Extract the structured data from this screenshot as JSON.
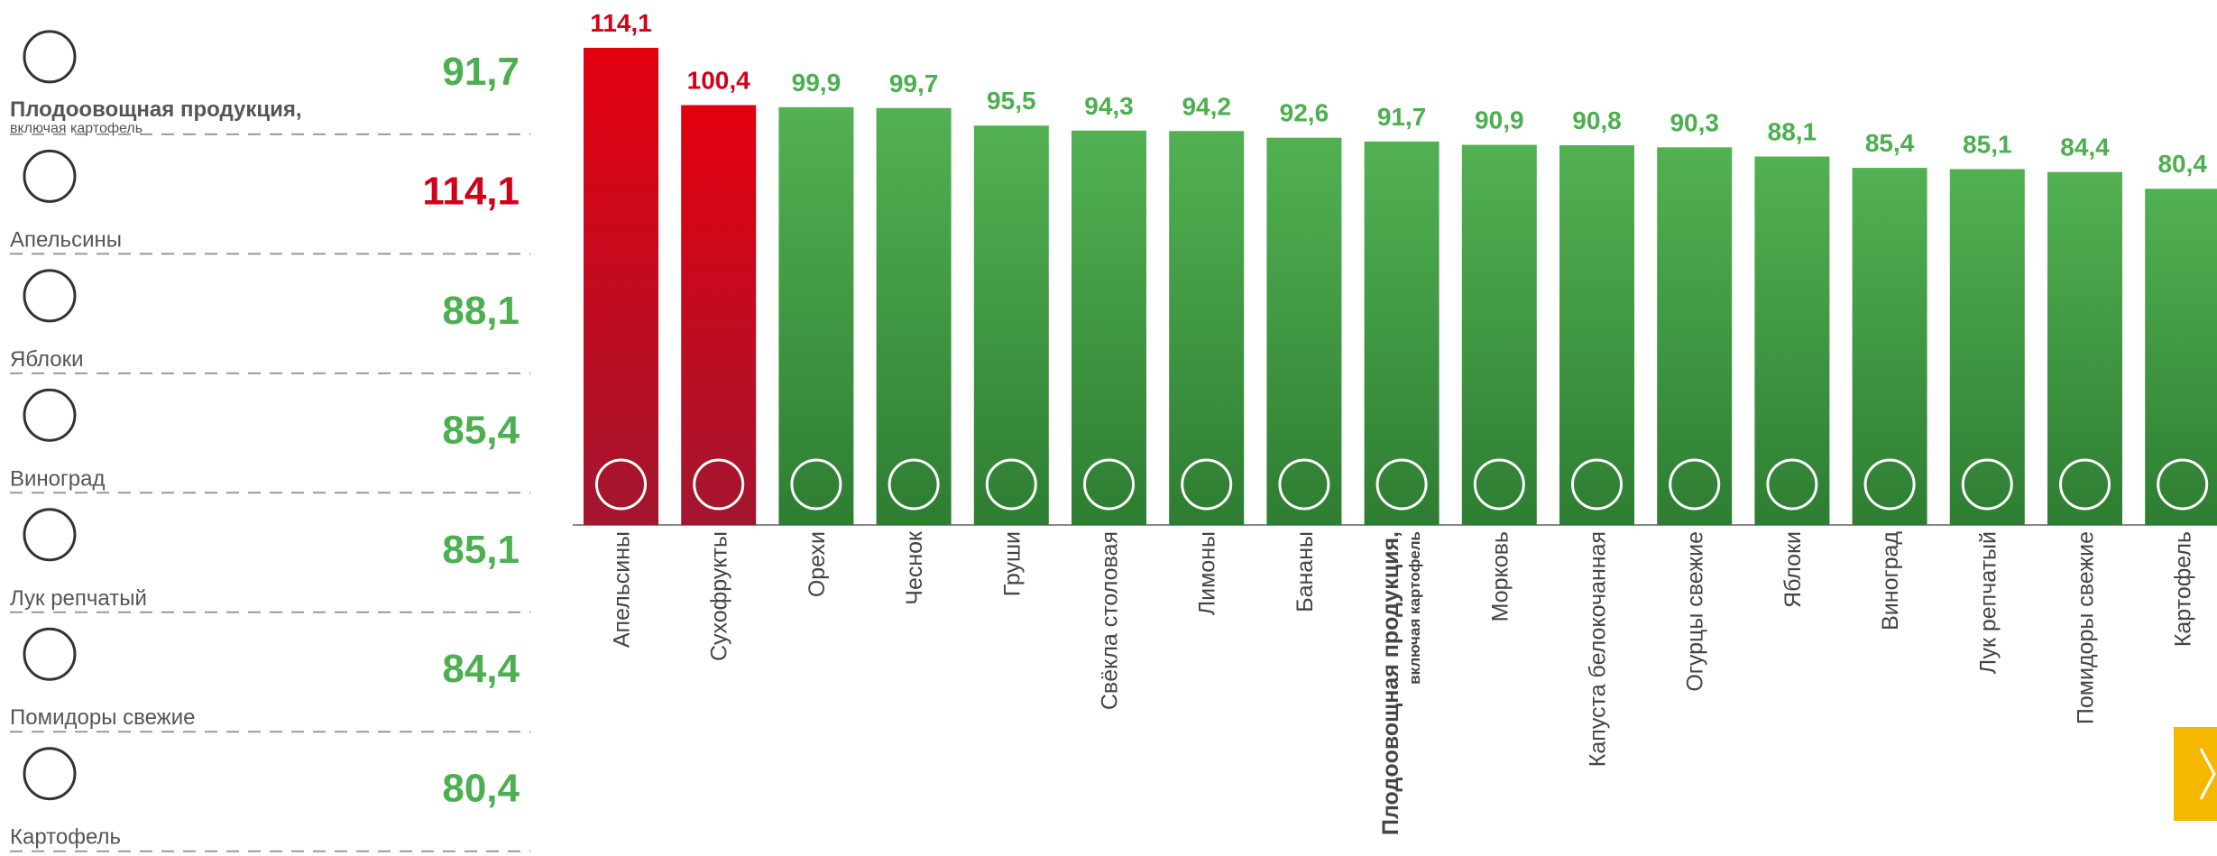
{
  "summary": [
    {
      "name": "Плодоовощная продукция,",
      "note": "включая картофель",
      "value": "91,7",
      "color": "#4caf50"
    },
    {
      "name": "Апельсины",
      "value": "114,1",
      "color": "#d0021b"
    },
    {
      "name": "Яблоки",
      "value": "88,1",
      "color": "#4caf50"
    },
    {
      "name": "Виноград",
      "value": "85,4",
      "color": "#4caf50"
    },
    {
      "name": "Лук репчатый",
      "value": "85,1",
      "color": "#4caf50"
    },
    {
      "name": "Помидоры свежие",
      "value": "84,4",
      "color": "#4caf50"
    },
    {
      "name": "Картофель",
      "value": "80,4",
      "color": "#4caf50"
    }
  ],
  "chart_data": {
    "type": "bar",
    "categories": [
      "Апельсины",
      "Сухофрукты",
      "Орехи",
      "Чеснок",
      "Груши",
      "Свёкла столовая",
      "Лимоны",
      "Бананы",
      "Плодоовощная продукция,",
      "Морковь",
      "Капуста белокочанная",
      "Огурцы свежие",
      "Яблоки",
      "Виноград",
      "Лук репчатый",
      "Помидоры свежие",
      "Картофель"
    ],
    "category_notes": [
      null,
      null,
      null,
      null,
      null,
      null,
      null,
      null,
      "включая картофель",
      null,
      null,
      null,
      null,
      null,
      null,
      null,
      null
    ],
    "highlight_index": 8,
    "values": [
      114.1,
      100.4,
      99.9,
      99.7,
      95.5,
      94.3,
      94.2,
      92.6,
      91.7,
      90.9,
      90.8,
      90.3,
      88.1,
      85.4,
      85.1,
      84.4,
      80.4
    ],
    "value_labels": [
      "114,1",
      "100,4",
      "99,9",
      "99,7",
      "95,5",
      "94,3",
      "94,2",
      "92,6",
      "91,7",
      "90,9",
      "90,8",
      "90,3",
      "88,1",
      "85,4",
      "85,1",
      "84,4",
      "80,4"
    ],
    "colors": [
      "#d0021b",
      "#d0021b",
      "#4caf50",
      "#4caf50",
      "#4caf50",
      "#4caf50",
      "#4caf50",
      "#4caf50",
      "#4caf50",
      "#4caf50",
      "#4caf50",
      "#4caf50",
      "#4caf50",
      "#4caf50",
      "#4caf50",
      "#4caf50",
      "#4caf50"
    ]
  }
}
